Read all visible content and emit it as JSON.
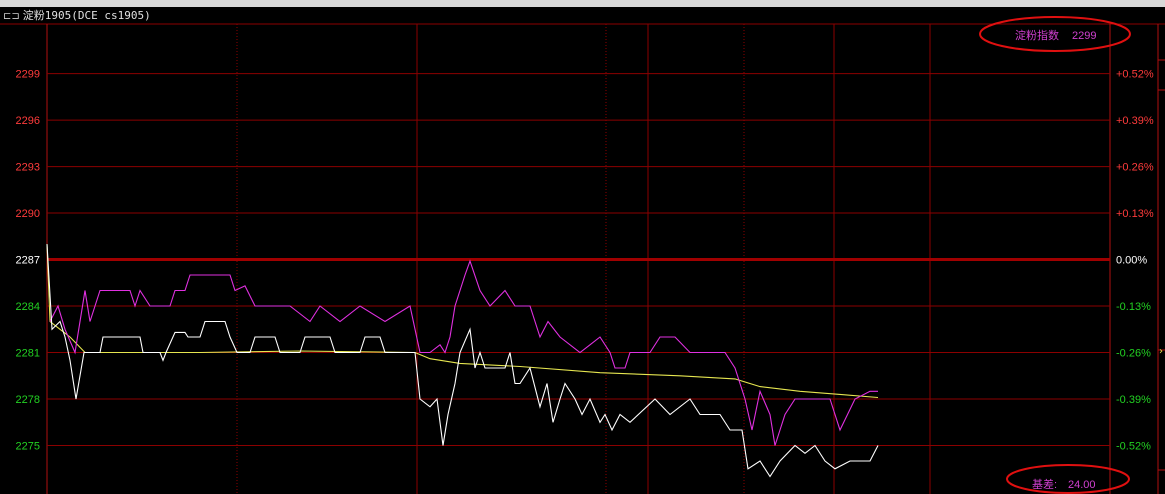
{
  "window": {
    "title": "淀粉1905(DCE cs1905)",
    "link_icon": "link-icon"
  },
  "header_info": {
    "name": "淀粉指数",
    "value": "2299"
  },
  "footer_info": {
    "label": "基差:",
    "value": "24.00"
  },
  "colors": {
    "up": "#ff3b3b",
    "down": "#22d022",
    "flat": "#ffffff",
    "grid": "#8b0000",
    "price": "#ffffff",
    "index": "#e030e0",
    "average": "#e6e650",
    "annotation": "#e01010"
  },
  "chart_data": {
    "type": "line",
    "title": "",
    "xlabel": "",
    "ylabel": "",
    "xlim": [
      0,
      212.6
    ],
    "ylim": [
      2272,
      2302.2
    ],
    "reference_price": 2287,
    "left_ticks": [
      "2299",
      "2296",
      "2293",
      "2290",
      "2287",
      "2284",
      "2281",
      "2278",
      "2275"
    ],
    "left_tick_values": [
      2299,
      2296,
      2293,
      2290,
      2287,
      2284,
      2281,
      2278,
      2275
    ],
    "right_ticks": [
      "+0.52%",
      "+0.39%",
      "+0.26%",
      "+0.13%",
      "0.00%",
      "-0.13%",
      "-0.26%",
      "-0.39%",
      "-0.52%"
    ],
    "grid": true,
    "series": [
      {
        "key": "price",
        "color": "#ffffff",
        "points": [
          [
            0,
            2288
          ],
          [
            1,
            2282.5
          ],
          [
            2.6,
            2283
          ],
          [
            3.6,
            2282
          ],
          [
            4.6,
            2280.5
          ],
          [
            5.8,
            2278
          ],
          [
            7.4,
            2281
          ],
          [
            10.6,
            2281
          ],
          [
            11.2,
            2282
          ],
          [
            18.6,
            2282
          ],
          [
            19.2,
            2281
          ],
          [
            22.6,
            2281
          ],
          [
            23.2,
            2280.5
          ],
          [
            23.8,
            2281
          ],
          [
            25.6,
            2282.3
          ],
          [
            27.6,
            2282.3
          ],
          [
            28.2,
            2282
          ],
          [
            30.6,
            2282
          ],
          [
            31.6,
            2283
          ],
          [
            35.6,
            2283
          ],
          [
            36.6,
            2282
          ],
          [
            38,
            2281
          ],
          [
            40.6,
            2281
          ],
          [
            41.6,
            2282
          ],
          [
            45.6,
            2282
          ],
          [
            46.6,
            2281
          ],
          [
            50.6,
            2281
          ],
          [
            51.6,
            2282
          ],
          [
            56.6,
            2282
          ],
          [
            57.6,
            2281
          ],
          [
            62.6,
            2281
          ],
          [
            63.6,
            2282
          ],
          [
            66.6,
            2282
          ],
          [
            67.6,
            2281
          ],
          [
            73.6,
            2281
          ],
          [
            74.6,
            2278
          ],
          [
            76.6,
            2277.5
          ],
          [
            78,
            2278
          ],
          [
            79.2,
            2275
          ],
          [
            80.2,
            2277
          ],
          [
            81.6,
            2279
          ],
          [
            82.6,
            2281
          ],
          [
            84.6,
            2282.5
          ],
          [
            85.6,
            2280
          ],
          [
            86.6,
            2281
          ],
          [
            87.6,
            2280
          ],
          [
            91.6,
            2280
          ],
          [
            92.6,
            2281
          ],
          [
            93.6,
            2279
          ],
          [
            94.6,
            2279
          ],
          [
            96.6,
            2280
          ],
          [
            98.6,
            2277.5
          ],
          [
            100,
            2279
          ],
          [
            101.2,
            2276.5
          ],
          [
            102.6,
            2278
          ],
          [
            103.6,
            2279
          ],
          [
            105.6,
            2278
          ],
          [
            107,
            2277
          ],
          [
            108.6,
            2278
          ],
          [
            110.6,
            2276.5
          ],
          [
            111.6,
            2277
          ],
          [
            113,
            2276
          ],
          [
            114.6,
            2277
          ],
          [
            116.6,
            2276.5
          ],
          [
            121.6,
            2278
          ],
          [
            124.6,
            2277
          ],
          [
            128.6,
            2278
          ],
          [
            130.6,
            2277
          ],
          [
            134.6,
            2277
          ],
          [
            136.6,
            2276
          ],
          [
            139,
            2276
          ],
          [
            140.2,
            2273.5
          ],
          [
            142.6,
            2274
          ],
          [
            144.6,
            2273
          ],
          [
            146.6,
            2274
          ],
          [
            149.6,
            2275
          ],
          [
            151.6,
            2274.5
          ],
          [
            153.6,
            2275
          ],
          [
            155.6,
            2274
          ],
          [
            157.6,
            2273.5
          ],
          [
            160.6,
            2274
          ],
          [
            164.6,
            2274
          ],
          [
            166.2,
            2275
          ]
        ]
      },
      {
        "key": "index",
        "color": "#e030e0",
        "points": [
          [
            0.6,
            2283
          ],
          [
            2.2,
            2284
          ],
          [
            3.6,
            2282.5
          ],
          [
            5.6,
            2281
          ],
          [
            7.6,
            2285
          ],
          [
            8.6,
            2283
          ],
          [
            9.6,
            2284
          ],
          [
            10.6,
            2285
          ],
          [
            16.6,
            2285
          ],
          [
            17.6,
            2284
          ],
          [
            18.6,
            2285
          ],
          [
            20.6,
            2284
          ],
          [
            24.6,
            2284
          ],
          [
            25.6,
            2285
          ],
          [
            27.6,
            2285
          ],
          [
            28.6,
            2286
          ],
          [
            36.6,
            2286
          ],
          [
            37.6,
            2285
          ],
          [
            39.6,
            2285.3
          ],
          [
            41.6,
            2284
          ],
          [
            48.6,
            2284
          ],
          [
            52.6,
            2283
          ],
          [
            54.6,
            2284
          ],
          [
            58.6,
            2283
          ],
          [
            62.6,
            2284
          ],
          [
            67.6,
            2283
          ],
          [
            72.6,
            2284
          ],
          [
            74.6,
            2281
          ],
          [
            76.6,
            2281
          ],
          [
            78.6,
            2281.5
          ],
          [
            79.6,
            2281
          ],
          [
            80.6,
            2282
          ],
          [
            81.6,
            2284
          ],
          [
            83.6,
            2286
          ],
          [
            84.6,
            2286.9
          ],
          [
            86.6,
            2285
          ],
          [
            88.6,
            2284
          ],
          [
            91.6,
            2285
          ],
          [
            93.6,
            2284
          ],
          [
            96.6,
            2284
          ],
          [
            98.6,
            2282
          ],
          [
            100.2,
            2283
          ],
          [
            102.6,
            2282
          ],
          [
            106.6,
            2281
          ],
          [
            108.6,
            2281.5
          ],
          [
            110.6,
            2282
          ],
          [
            112.6,
            2281
          ],
          [
            113.6,
            2280
          ],
          [
            115.6,
            2280
          ],
          [
            116.6,
            2281
          ],
          [
            120.6,
            2281
          ],
          [
            122.6,
            2282
          ],
          [
            125.6,
            2282
          ],
          [
            128.6,
            2281
          ],
          [
            135.6,
            2281
          ],
          [
            137.6,
            2280
          ],
          [
            139.6,
            2278
          ],
          [
            141,
            2276
          ],
          [
            142.6,
            2278.5
          ],
          [
            144.6,
            2277
          ],
          [
            145.6,
            2275
          ],
          [
            147.6,
            2277
          ],
          [
            149.6,
            2278
          ],
          [
            156.6,
            2278
          ],
          [
            158.6,
            2276
          ],
          [
            161.6,
            2278
          ],
          [
            164.6,
            2278.5
          ],
          [
            166.2,
            2278.5
          ]
        ]
      },
      {
        "key": "average",
        "color": "#e6e650",
        "points": [
          [
            0,
            2288
          ],
          [
            0.6,
            2283
          ],
          [
            2.6,
            2282.5
          ],
          [
            4.6,
            2282
          ],
          [
            7.6,
            2281
          ],
          [
            30.6,
            2281
          ],
          [
            50.6,
            2281.1
          ],
          [
            73.6,
            2281
          ],
          [
            76.6,
            2280.6
          ],
          [
            82.6,
            2280.3
          ],
          [
            94.6,
            2280.1
          ],
          [
            110.6,
            2279.7
          ],
          [
            126.6,
            2279.5
          ],
          [
            137.6,
            2279.3
          ],
          [
            142.6,
            2278.8
          ],
          [
            150.6,
            2278.5
          ],
          [
            158.6,
            2278.3
          ],
          [
            166.2,
            2278.1
          ]
        ]
      }
    ]
  }
}
